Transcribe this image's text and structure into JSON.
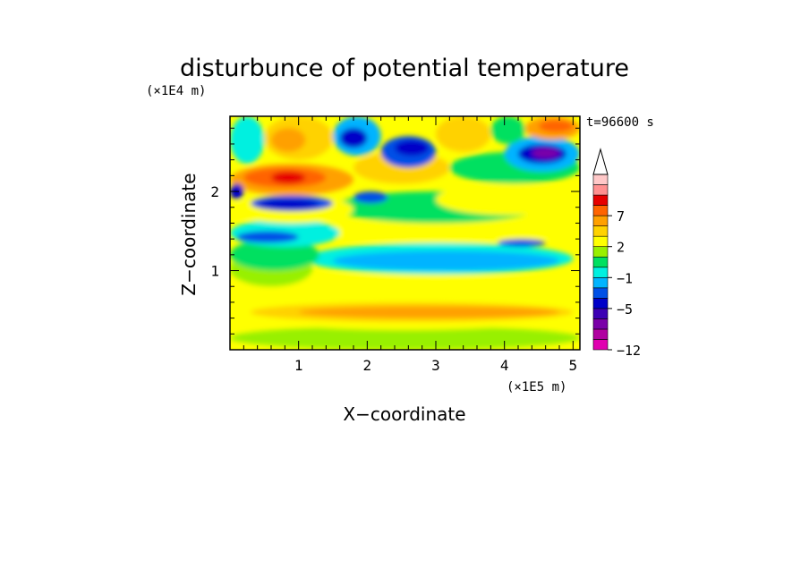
{
  "chart_data": {
    "type": "heatmap",
    "title": "disturbunce of potential temperature",
    "time_label": "t=96600 s",
    "xlabel": "X−coordinate",
    "ylabel": "Z−coordinate",
    "x_unit": "(×1E5 m)",
    "y_unit": "(×1E4 m)",
    "xlim": [
      0,
      5.1
    ],
    "ylim": [
      0,
      2.95
    ],
    "x_ticks": [
      "1",
      "2",
      "3",
      "4",
      "5"
    ],
    "y_ticks": [
      "1",
      "2"
    ],
    "colorbar": {
      "levels": [
        -12,
        -11,
        -9,
        -7,
        -5,
        -3,
        -2,
        -1,
        0,
        1,
        2,
        3,
        5,
        7,
        9,
        11
      ],
      "colors": [
        "#e000b0",
        "#b000a0",
        "#7a00a8",
        "#3c00b4",
        "#0000c8",
        "#0050e6",
        "#00b4ff",
        "#00f0e0",
        "#00e060",
        "#98f000",
        "#ffff00",
        "#ffd200",
        "#ffa000",
        "#ff6400",
        "#e60000",
        "#ff9090",
        "#ffc8c8"
      ],
      "tick_labels": [
        "7",
        "2",
        "−1",
        "−5",
        "−12"
      ],
      "extend": "max"
    },
    "description_rows": [
      {
        "z": 0.1,
        "pattern": "yellow/green near-surface mix"
      },
      {
        "z": 0.5,
        "pattern": "yellow with orange bands (2 to 5)"
      },
      {
        "z": 0.85,
        "pattern": "yellow/green"
      },
      {
        "z": 1.1,
        "pattern": "cyan band (-1 to 0)"
      },
      {
        "z": 1.45,
        "pattern": "yellow band"
      },
      {
        "z": 1.85,
        "pattern": "dark blue trough (-5) left"
      },
      {
        "z": 2.25,
        "pattern": "orange/red ridge (5 to 7) left"
      },
      {
        "z": 2.55,
        "pattern": "purple minimum (-9) right"
      }
    ]
  }
}
